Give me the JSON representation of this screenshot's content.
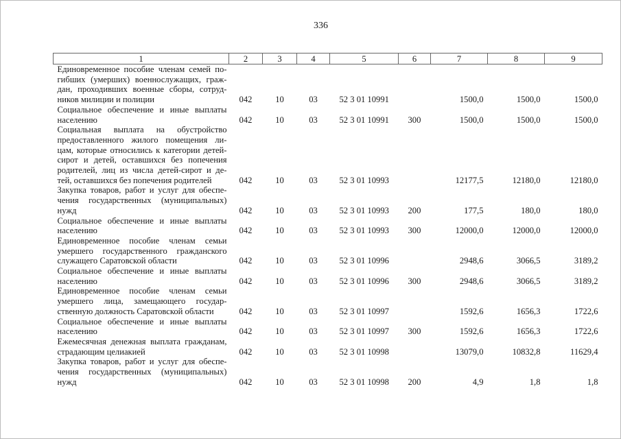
{
  "page_number": "336",
  "table": {
    "headers": [
      "1",
      "2",
      "3",
      "4",
      "5",
      "6",
      "7",
      "8",
      "9"
    ],
    "rows": [
      {
        "name": [
          "Единовременное пособие членам семей по-",
          "гибших (умерших) военнослужащих, граж-",
          "дан, проходивших военные сборы, сотруд-",
          "ников милиции и полиции"
        ],
        "c2": "042",
        "c3": "10",
        "c4": "03",
        "c5": "52 3 01 10991",
        "c6": "",
        "c7": "1500,0",
        "c8": "1500,0",
        "c9": "1500,0"
      },
      {
        "name": [
          "Социальное обеспечение и иные выплаты",
          "населению"
        ],
        "c2": "042",
        "c3": "10",
        "c4": "03",
        "c5": "52 3 01 10991",
        "c6": "300",
        "c7": "1500,0",
        "c8": "1500,0",
        "c9": "1500,0"
      },
      {
        "name": [
          "Социальная выплата на обустройство",
          "предоставленного жилого помещения ли-",
          "цам, которые относились к категории детей-",
          "сирот и детей, оставшихся без попечения",
          "родителей, лиц из числа детей-сирот и де-",
          "тей, оставшихся без попечения родителей"
        ],
        "c2": "042",
        "c3": "10",
        "c4": "03",
        "c5": "52 3 01 10993",
        "c6": "",
        "c7": "12177,5",
        "c8": "12180,0",
        "c9": "12180,0"
      },
      {
        "name": [
          "Закупка товаров, работ и услуг для обеспе-",
          "чения государственных (муниципальных)",
          "нужд"
        ],
        "c2": "042",
        "c3": "10",
        "c4": "03",
        "c5": "52 3 01 10993",
        "c6": "200",
        "c7": "177,5",
        "c8": "180,0",
        "c9": "180,0"
      },
      {
        "name": [
          "Социальное обеспечение и иные выплаты",
          "населению"
        ],
        "c2": "042",
        "c3": "10",
        "c4": "03",
        "c5": "52 3 01 10993",
        "c6": "300",
        "c7": "12000,0",
        "c8": "12000,0",
        "c9": "12000,0"
      },
      {
        "name": [
          "Единовременное пособие членам семьи",
          "умершего государственного гражданского",
          "служащего Саратовской области"
        ],
        "c2": "042",
        "c3": "10",
        "c4": "03",
        "c5": "52 3 01 10996",
        "c6": "",
        "c7": "2948,6",
        "c8": "3066,5",
        "c9": "3189,2"
      },
      {
        "name": [
          "Социальное обеспечение и иные выплаты",
          "населению"
        ],
        "c2": "042",
        "c3": "10",
        "c4": "03",
        "c5": "52 3 01 10996",
        "c6": "300",
        "c7": "2948,6",
        "c8": "3066,5",
        "c9": "3189,2"
      },
      {
        "name": [
          "Единовременное пособие членам семьи",
          "умершего лица, замещающего государ-",
          "ственную должность Саратовской области"
        ],
        "c2": "042",
        "c3": "10",
        "c4": "03",
        "c5": "52 3 01 10997",
        "c6": "",
        "c7": "1592,6",
        "c8": "1656,3",
        "c9": "1722,6"
      },
      {
        "name": [
          "Социальное обеспечение и иные выплаты",
          "населению"
        ],
        "c2": "042",
        "c3": "10",
        "c4": "03",
        "c5": "52 3 01 10997",
        "c6": "300",
        "c7": "1592,6",
        "c8": "1656,3",
        "c9": "1722,6"
      },
      {
        "name": [
          "Ежемесячная денежная выплата гражданам,",
          "страдающим целиакией"
        ],
        "c2": "042",
        "c3": "10",
        "c4": "03",
        "c5": "52 3 01 10998",
        "c6": "",
        "c7": "13079,0",
        "c8": "10832,8",
        "c9": "11629,4"
      },
      {
        "name": [
          "Закупка товаров, работ и услуг для обеспе-",
          "чения государственных (муниципальных)",
          "нужд"
        ],
        "c2": "042",
        "c3": "10",
        "c4": "03",
        "c5": "52 3 01 10998",
        "c6": "200",
        "c7": "4,9",
        "c8": "1,8",
        "c9": "1,8"
      }
    ]
  }
}
